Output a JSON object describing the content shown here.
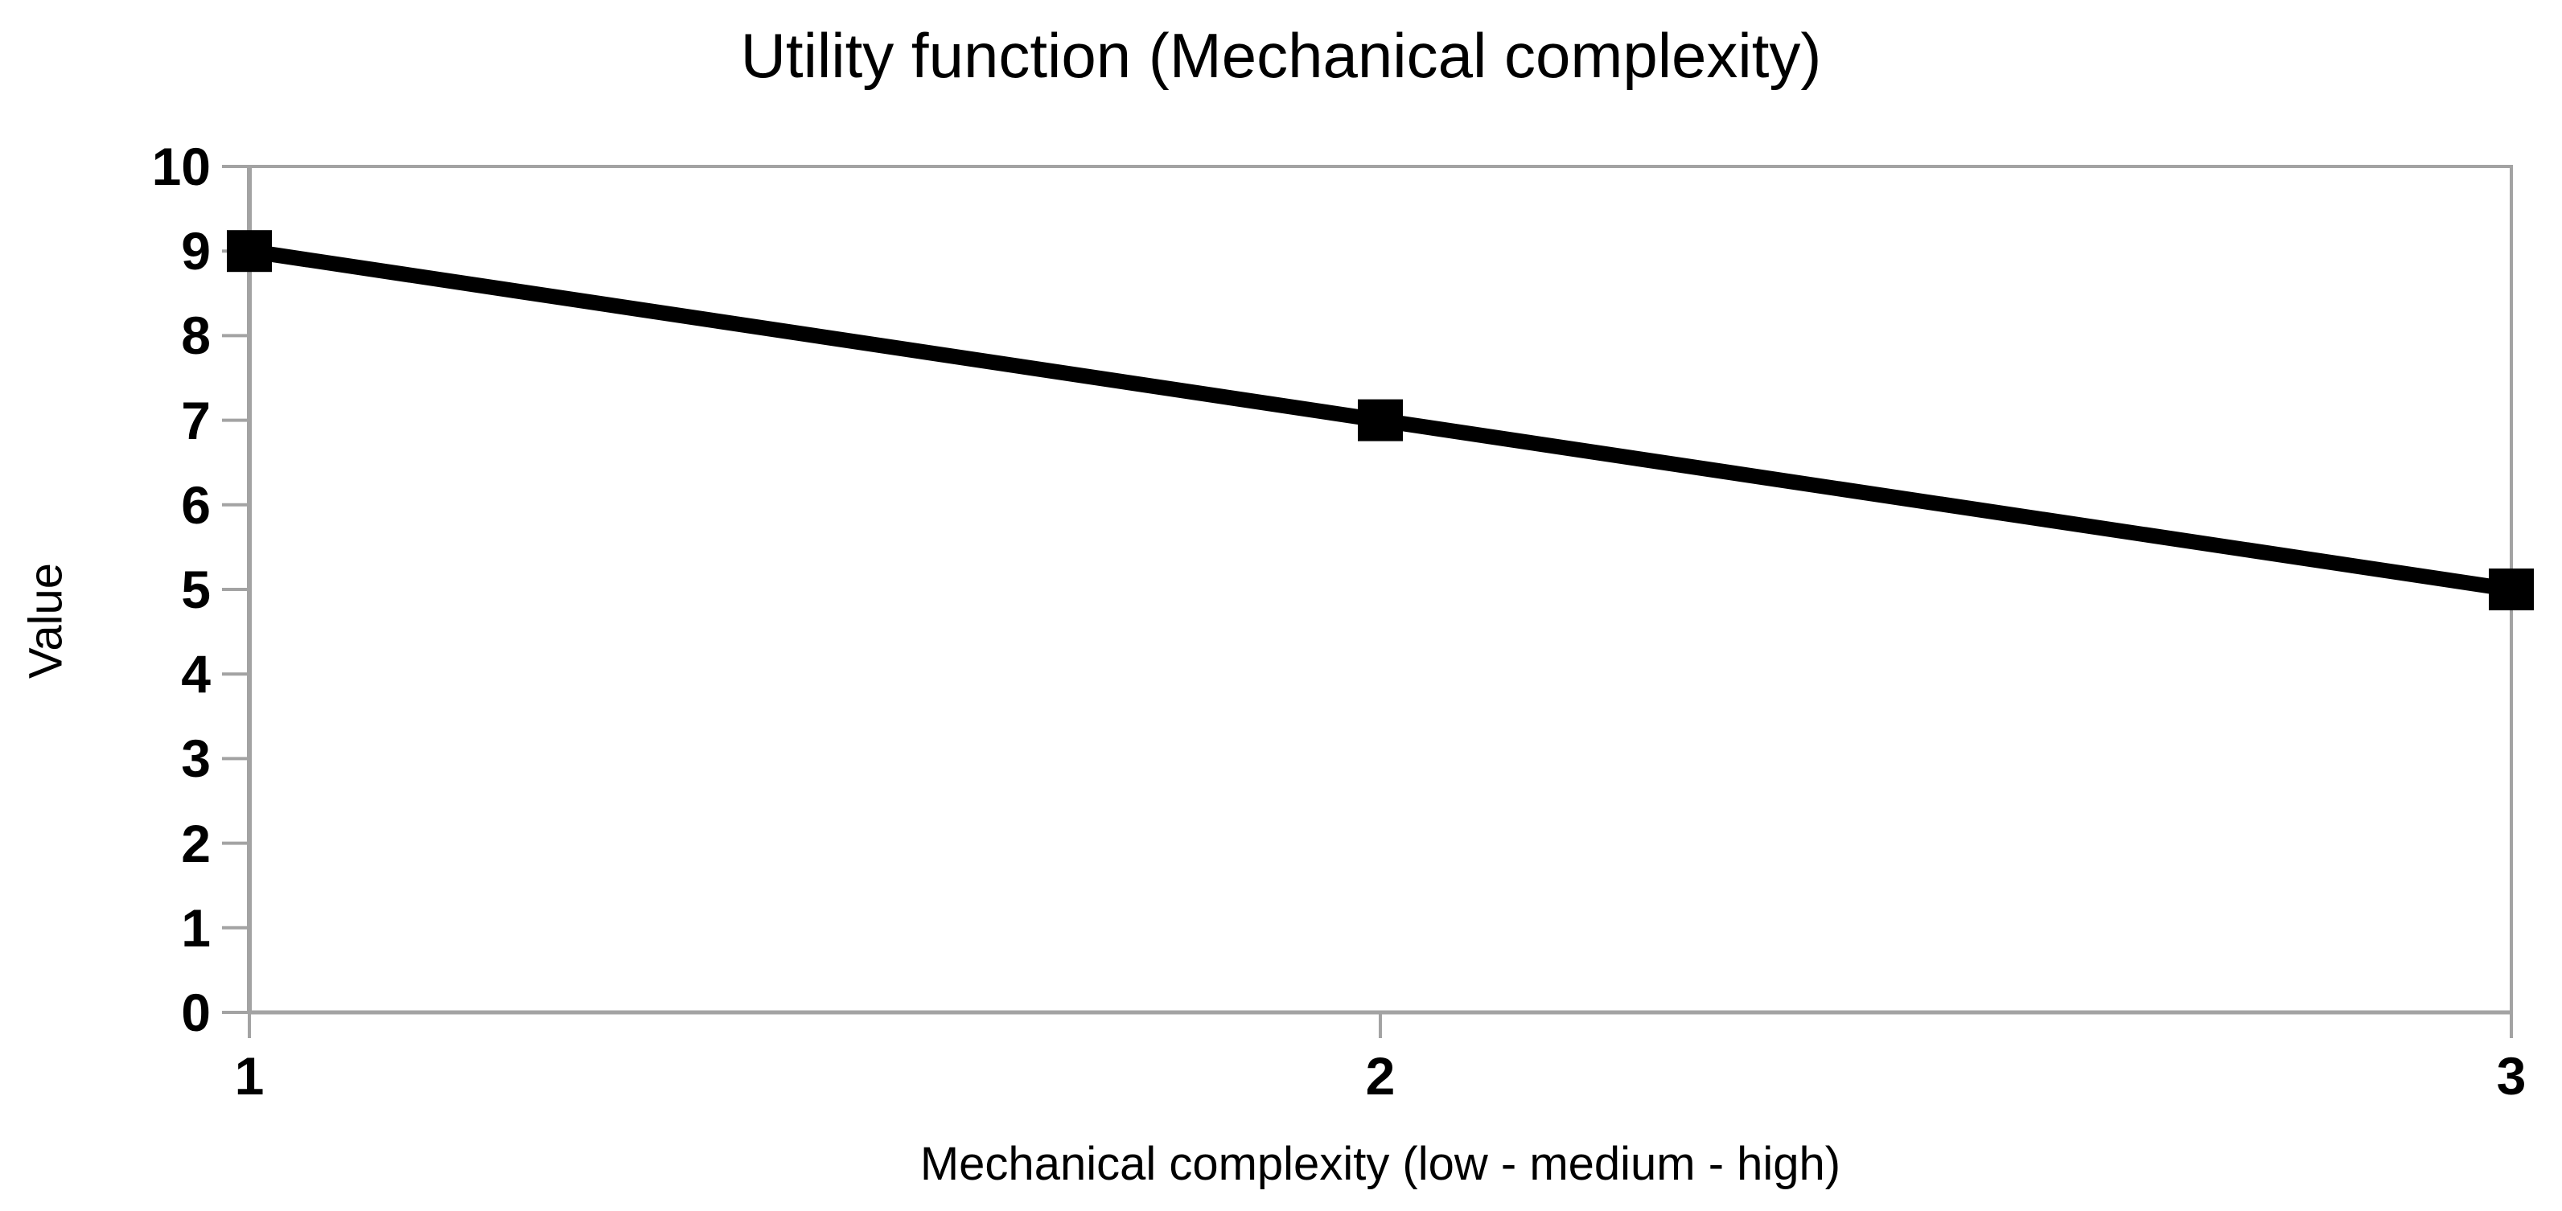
{
  "page": {
    "background": "#ffffff"
  },
  "chart_data": {
    "type": "line",
    "title": "Utility function (Mechanical complexity)",
    "xlabel": "Mechanical complexity (low - medium - high)",
    "ylabel": "Value",
    "x": [
      1,
      2,
      3
    ],
    "series": [
      {
        "name": "Value",
        "values": [
          9,
          7,
          5
        ]
      }
    ],
    "xlim": [
      1,
      3
    ],
    "ylim": [
      0,
      10
    ],
    "xticks": [
      1,
      2,
      3
    ],
    "yticks": [
      0,
      1,
      2,
      3,
      4,
      5,
      6,
      7,
      8,
      9,
      10
    ],
    "grid": false,
    "legend_position": "none",
    "line_color": "#000000",
    "line_width": 19,
    "marker_shape": "square",
    "marker_color": "#000000",
    "axis_color": "#a3a3a3",
    "text_color": "#000000",
    "plot_background": "#ffffff"
  }
}
